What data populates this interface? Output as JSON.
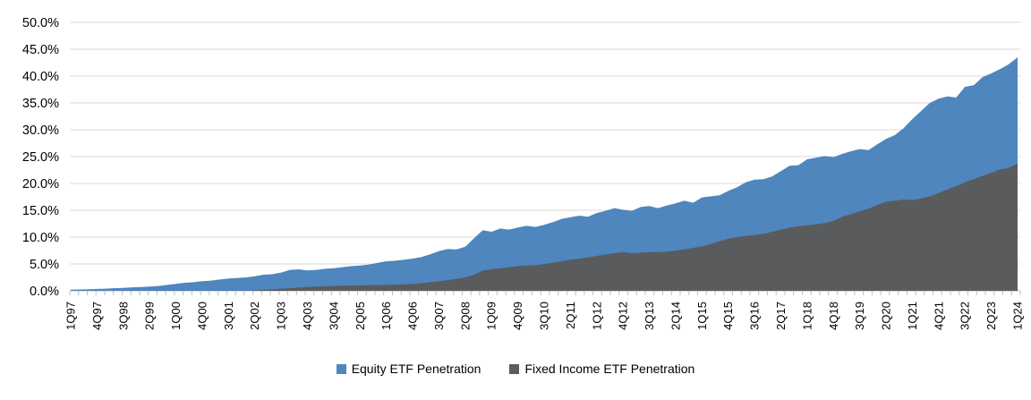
{
  "chart_data": {
    "type": "area",
    "title": "",
    "xlabel": "",
    "ylabel": "",
    "x_start_quarter": "1Q97",
    "x_end_quarter": "1Q24",
    "x_quarter_count": 109,
    "x_tick_every": 3,
    "x_tick_labels": [
      "1Q97",
      "4Q97",
      "3Q98",
      "2Q99",
      "1Q00",
      "4Q00",
      "3Q01",
      "2Q02",
      "1Q03",
      "4Q03",
      "3Q04",
      "2Q05",
      "1Q06",
      "4Q06",
      "3Q07",
      "2Q08",
      "1Q09",
      "4Q09",
      "3Q10",
      "2Q11",
      "1Q12",
      "4Q12",
      "3Q13",
      "2Q14",
      "1Q15",
      "4Q15",
      "3Q16",
      "2Q17",
      "1Q18",
      "4Q18",
      "3Q19",
      "2Q20",
      "1Q21",
      "4Q21",
      "3Q22",
      "2Q23",
      "1Q24"
    ],
    "ylim": [
      0,
      50
    ],
    "y_tick_step": 5,
    "y_tick_labels": [
      "0.0%",
      "5.0%",
      "10.0%",
      "15.0%",
      "20.0%",
      "25.0%",
      "30.0%",
      "35.0%",
      "40.0%",
      "45.0%",
      "50.0%"
    ],
    "grid": true,
    "legend_position": "bottom",
    "overlay_not_stacked": true,
    "series": [
      {
        "name": "Equity ETF Penetration",
        "color": "#4E86BD",
        "unit": "%",
        "values": [
          0.2,
          0.25,
          0.3,
          0.35,
          0.4,
          0.5,
          0.55,
          0.65,
          0.7,
          0.8,
          0.9,
          1.1,
          1.3,
          1.5,
          1.6,
          1.8,
          1.9,
          2.1,
          2.3,
          2.4,
          2.5,
          2.7,
          3.0,
          3.1,
          3.4,
          3.9,
          4.0,
          3.8,
          3.9,
          4.1,
          4.2,
          4.4,
          4.6,
          4.7,
          4.9,
          5.2,
          5.5,
          5.6,
          5.8,
          6.0,
          6.3,
          6.8,
          7.4,
          7.8,
          7.7,
          8.2,
          9.8,
          11.3,
          11.0,
          11.6,
          11.4,
          11.8,
          12.1,
          11.9,
          12.3,
          12.8,
          13.4,
          13.7,
          14.0,
          13.8,
          14.5,
          14.9,
          15.4,
          15.1,
          14.9,
          15.6,
          15.8,
          15.4,
          15.9,
          16.3,
          16.8,
          16.4,
          17.4,
          17.6,
          17.8,
          18.6,
          19.3,
          20.2,
          20.7,
          20.8,
          21.3,
          22.3,
          23.3,
          23.4,
          24.5,
          24.8,
          25.1,
          24.9,
          25.5,
          26.0,
          26.4,
          26.2,
          27.3,
          28.3,
          29.0,
          30.3,
          32.0,
          33.5,
          35.0,
          35.8,
          36.2,
          36.0,
          38.0,
          38.3,
          39.8,
          40.5,
          41.3,
          42.2,
          43.5
        ]
      },
      {
        "name": "Fixed Income ETF Penetration",
        "color": "#5A5B5D",
        "unit": "%",
        "values": [
          0,
          0,
          0,
          0,
          0,
          0,
          0,
          0,
          0,
          0,
          0,
          0,
          0,
          0,
          0,
          0,
          0,
          0,
          0,
          0,
          0.0,
          0.1,
          0.2,
          0.3,
          0.4,
          0.5,
          0.6,
          0.7,
          0.8,
          0.85,
          0.9,
          0.95,
          1.0,
          1.0,
          1.05,
          1.1,
          1.1,
          1.15,
          1.2,
          1.3,
          1.4,
          1.6,
          1.8,
          2.0,
          2.2,
          2.5,
          3.0,
          3.8,
          4.0,
          4.2,
          4.4,
          4.6,
          4.7,
          4.8,
          5.0,
          5.2,
          5.5,
          5.8,
          6.0,
          6.2,
          6.5,
          6.8,
          7.0,
          7.2,
          7.0,
          7.1,
          7.2,
          7.2,
          7.3,
          7.5,
          7.7,
          8.0,
          8.3,
          8.7,
          9.2,
          9.7,
          10.0,
          10.2,
          10.4,
          10.6,
          11.0,
          11.4,
          11.8,
          12.0,
          12.2,
          12.4,
          12.6,
          13.0,
          13.8,
          14.3,
          14.8,
          15.3,
          16.0,
          16.6,
          16.8,
          17.0,
          16.9,
          17.2,
          17.6,
          18.2,
          18.9,
          19.5,
          20.2,
          20.8,
          21.4,
          22.0,
          22.6,
          22.9,
          23.7
        ]
      }
    ],
    "colors": {
      "gridline": "#D9D9D9",
      "axis": "#BFBFBF",
      "text": "#000000",
      "background": "#FFFFFF"
    }
  }
}
